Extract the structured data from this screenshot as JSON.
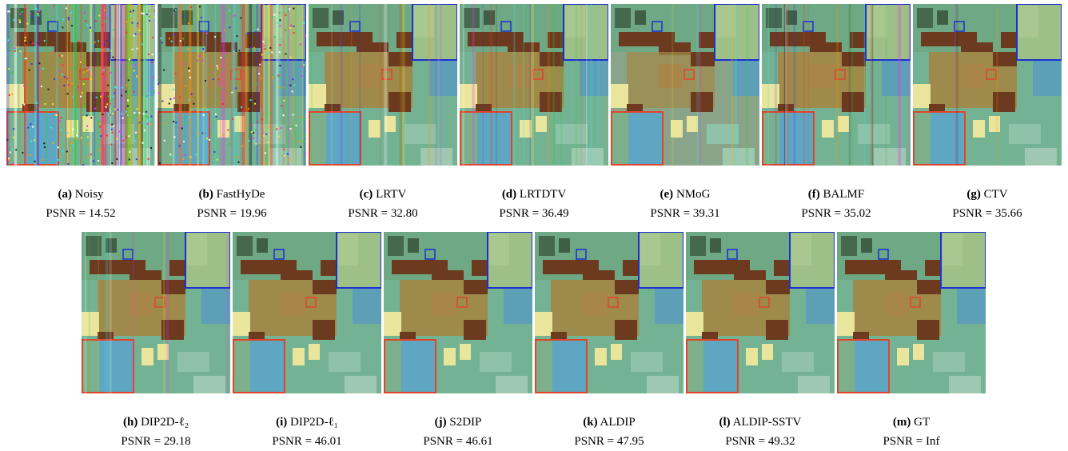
{
  "figure": {
    "panels": [
      {
        "letter": "(a)",
        "name": "Noisy",
        "psnr": "PSNR = 14.52"
      },
      {
        "letter": "(b)",
        "name": "FastHyDe",
        "psnr": "PSNR = 19.96"
      },
      {
        "letter": "(c)",
        "name": "LRTV",
        "psnr": "PSNR = 32.80"
      },
      {
        "letter": "(d)",
        "name": "LRTDTV",
        "psnr": "PSNR = 36.49"
      },
      {
        "letter": "(e)",
        "name": "NMoG",
        "psnr": "PSNR = 39.31"
      },
      {
        "letter": "(f)",
        "name": "BALMF",
        "psnr": "PSNR = 35.02"
      },
      {
        "letter": "(g)",
        "name": "CTV",
        "psnr": "PSNR = 35.66"
      },
      {
        "letter": "(h)",
        "name": "DIP2D-ℓ₂",
        "psnr": "PSNR = 29.18"
      },
      {
        "letter": "(i)",
        "name": "DIP2D-ℓ₁",
        "psnr": "PSNR = 46.01"
      },
      {
        "letter": "(j)",
        "name": "S2DIP",
        "psnr": "PSNR = 46.61"
      },
      {
        "letter": "(k)",
        "name": "ALDIP",
        "psnr": "PSNR = 47.95"
      },
      {
        "letter": "(l)",
        "name": "ALDIP-SSTV",
        "psnr": "PSNR = 49.32"
      },
      {
        "letter": "(m)",
        "name": "GT",
        "psnr": "PSNR = Inf"
      }
    ]
  }
}
